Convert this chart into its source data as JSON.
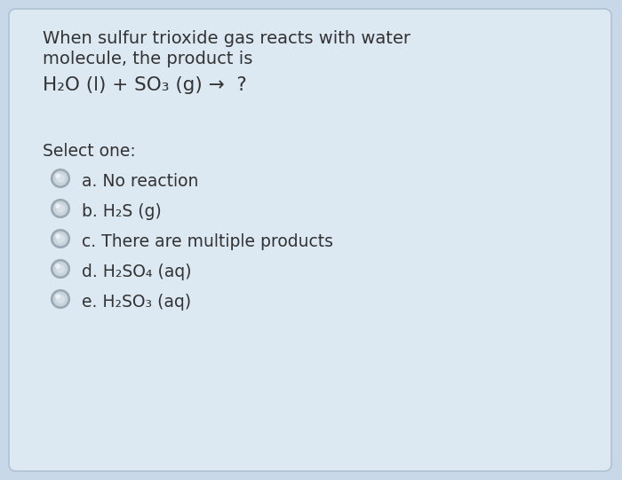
{
  "background_color": "#c8d8e8",
  "box_color": "#dce8f2",
  "box_border_color": "#a8bece",
  "text_color": "#333333",
  "question_line1": "When sulfur trioxide gas reacts with water",
  "question_line2": "molecule, the product is",
  "equation_parts": [
    {
      "text": "H",
      "sub": "2",
      "rest": "O (l) + SO",
      "sub2": "3",
      "rest2": " (g) →  ?"
    }
  ],
  "select_label": "Select one:",
  "options": [
    "a. No reaction",
    "b. H₂S (g)",
    "c. There are multiple products",
    "d. H₂SO₄ (aq)",
    "e. H₂SO₃ (aq)"
  ],
  "circle_color_outer": "#9aa8b4",
  "circle_color_inner": "#c8d4dc",
  "circle_highlight": "#e8eef2",
  "font_size_question": 14.0,
  "font_size_equation": 15.5,
  "font_size_select": 13.5,
  "font_size_options": 13.5,
  "fig_width": 7.0,
  "fig_height": 5.41,
  "dpi": 100
}
